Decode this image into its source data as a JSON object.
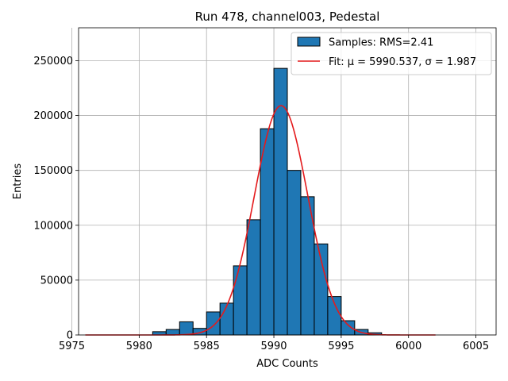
{
  "chart_data": {
    "type": "bar",
    "title": "Run 478, channel003, Pedestal",
    "xlabel": "ADC Counts",
    "ylabel": "Entries",
    "xlim": [
      5975.5,
      6006.5
    ],
    "ylim": [
      0,
      280000
    ],
    "xticks": [
      5975,
      5980,
      5985,
      5990,
      5995,
      6000,
      6005
    ],
    "yticks": [
      0,
      50000,
      100000,
      150000,
      200000,
      250000
    ],
    "grid": true,
    "legend_position": "top-right",
    "bar_color": "#1f77b4",
    "fit_color": "#e41a1c",
    "histogram": {
      "name": "Samples: RMS=2.41",
      "bin_edges": [
        5981,
        5982,
        5983,
        5984,
        5985,
        5986,
        5987,
        5988,
        5989,
        5990,
        5991,
        5992,
        5993,
        5994,
        5995,
        5996,
        5997,
        5998
      ],
      "counts": [
        3000,
        5000,
        12000,
        6000,
        21000,
        29000,
        63000,
        105000,
        188000,
        243000,
        150000,
        126000,
        83000,
        35000,
        13000,
        5000,
        2000
      ]
    },
    "fit": {
      "name": "Fit: μ = 5990.537, σ = 1.987",
      "mu": 5990.537,
      "sigma": 1.987,
      "amplitude": 209000,
      "x_range": [
        5976,
        6002
      ]
    }
  }
}
